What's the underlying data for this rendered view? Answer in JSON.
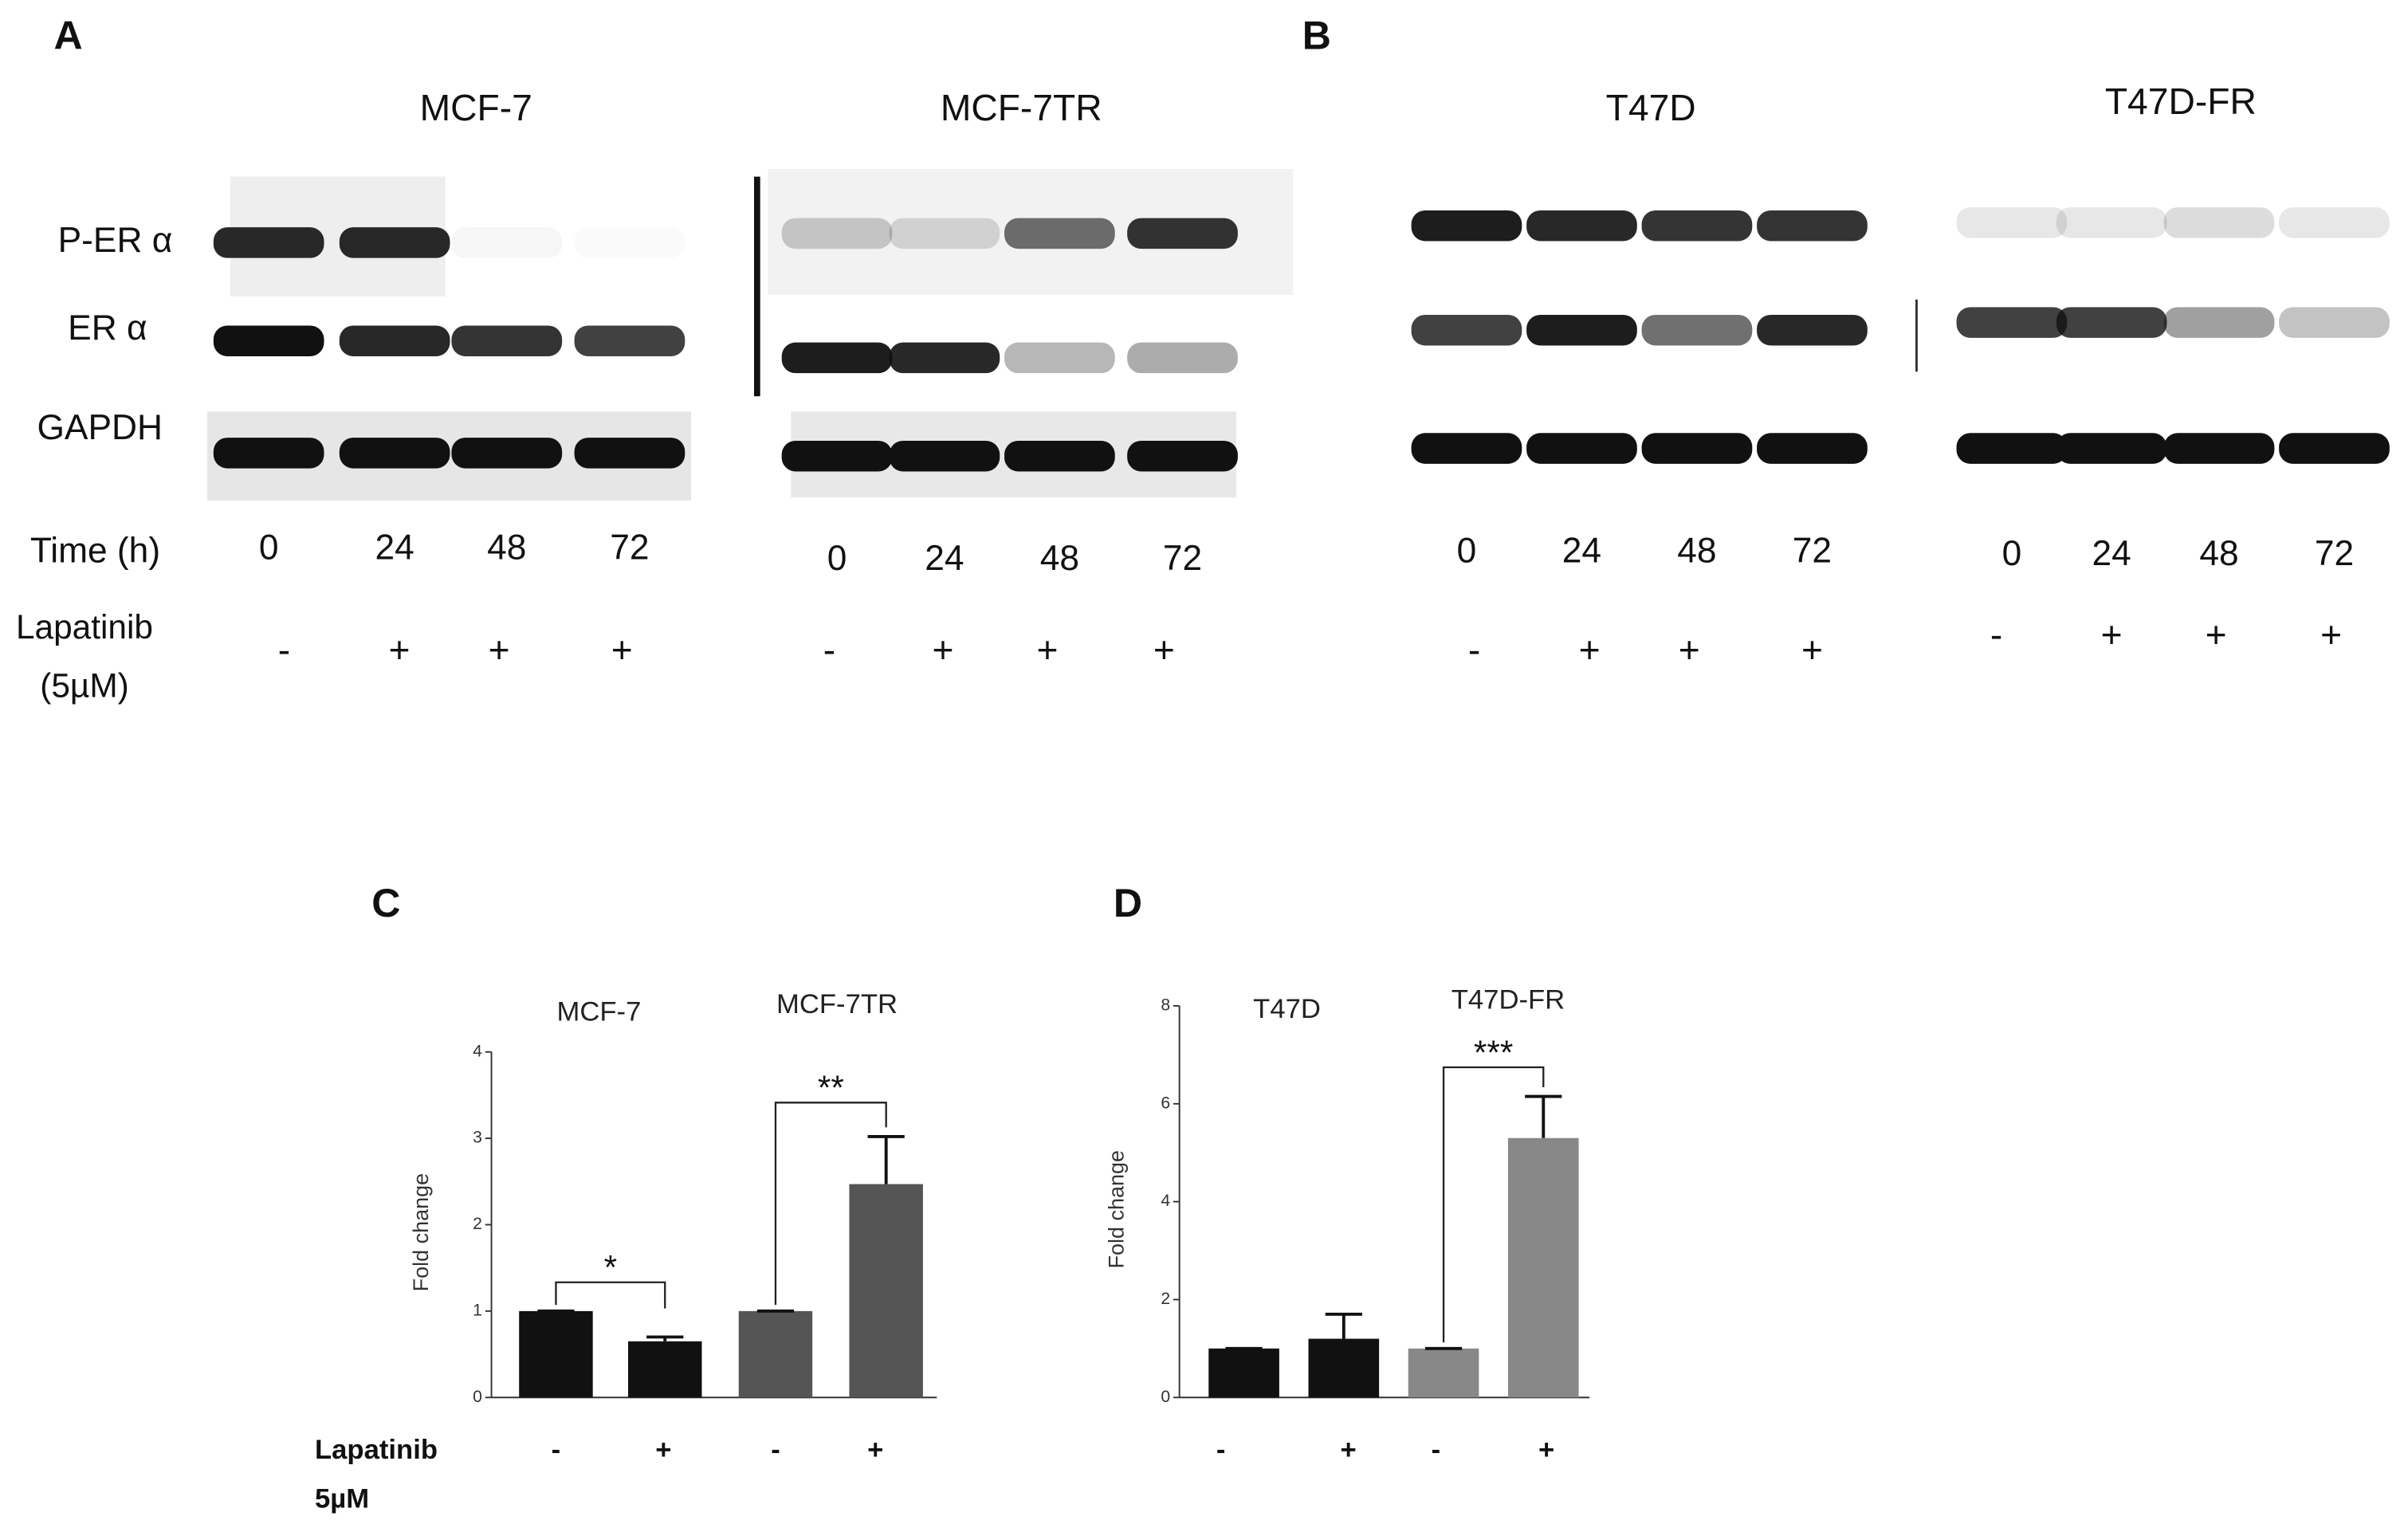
{
  "panel_labels": [
    "A",
    "B",
    "C",
    "D"
  ],
  "blot_rows": [
    "P-ER α",
    "ER α",
    "GAPDH"
  ],
  "time_label": "Time (h)",
  "treatment_label": [
    "Lapatinib",
    "(5µM)"
  ],
  "blots": [
    {
      "cell_line": "MCF-7",
      "times": [
        0,
        24,
        48,
        72
      ],
      "treatment": [
        "-",
        "+",
        "+",
        "+"
      ]
    },
    {
      "cell_line": "MCF-7TR",
      "times": [
        0,
        24,
        48,
        72
      ],
      "treatment": [
        "-",
        "+",
        "+",
        "+"
      ]
    },
    {
      "cell_line": "T47D",
      "times": [
        0,
        24,
        48,
        72
      ],
      "treatment": [
        "-",
        "+",
        "+",
        "+"
      ]
    },
    {
      "cell_line": "T47D-FR",
      "times": [
        0,
        24,
        48,
        72
      ],
      "treatment": [
        "-",
        "+",
        "+",
        "+"
      ]
    }
  ],
  "chart_data": [
    {
      "type": "bar",
      "y_label": "Fold change",
      "groups": [
        "MCF-7",
        "MCF-7TR"
      ],
      "categories": [
        "-",
        "+",
        "-",
        "+"
      ],
      "category_label": [
        "Lapatinib",
        "5µM"
      ],
      "values": [
        1,
        0.65,
        1,
        2.47
      ],
      "errors": [
        0,
        0.05,
        0,
        0.55
      ],
      "colors": [
        "#111111",
        "#111111",
        "#555555",
        "#555555"
      ],
      "significance": [
        "*",
        "**"
      ],
      "ylim": [
        0,
        4
      ],
      "yticks": [
        0,
        1,
        2,
        3,
        4
      ]
    },
    {
      "type": "bar",
      "y_label": "Fold change",
      "groups": [
        "T47D",
        "T47D-FR"
      ],
      "categories": [
        "-",
        "+",
        "-",
        "+"
      ],
      "values": [
        1,
        1.2,
        1,
        5.3
      ],
      "errors": [
        0,
        0.5,
        0,
        0.85
      ],
      "colors": [
        "#111111",
        "#111111",
        "#888888",
        "#888888"
      ],
      "significance": [
        "***"
      ],
      "ylim": [
        0,
        8
      ],
      "yticks": [
        0,
        2,
        4,
        6,
        8
      ]
    }
  ]
}
